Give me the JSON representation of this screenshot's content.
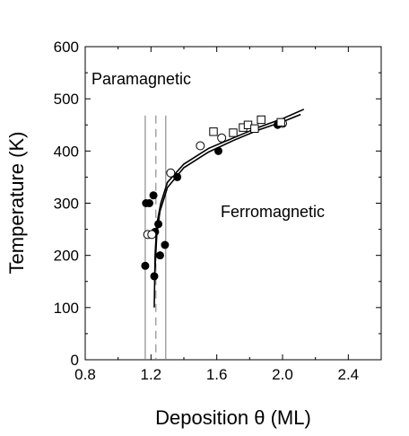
{
  "chart_data": {
    "type": "scatter",
    "xlabel": "Deposition θ (ML)",
    "ylabel": "Temperature (K)",
    "xlim": [
      0.8,
      2.6
    ],
    "ylim": [
      0,
      600
    ],
    "x_ticks": [
      0.8,
      1.2,
      1.6,
      2.0,
      2.4
    ],
    "x_tick_labels": [
      "0.8",
      "1.2",
      "1.6",
      "2.0",
      "2.4"
    ],
    "y_ticks": [
      0,
      100,
      200,
      300,
      400,
      500,
      600
    ],
    "y_tick_labels": [
      "0",
      "100",
      "200",
      "300",
      "400",
      "500",
      "600"
    ],
    "grid": false,
    "annotations": [
      {
        "text": "Paramagnetic",
        "x": 0.86,
        "y": 520
      },
      {
        "text": "Ferromagnetic",
        "x": 1.96,
        "y": 280
      }
    ],
    "vertical_lines": [
      {
        "x": 1.165,
        "style": "solid"
      },
      {
        "x": 1.23,
        "style": "dashed"
      },
      {
        "x": 1.29,
        "style": "solid"
      }
    ],
    "series": [
      {
        "marker": "filled-circle",
        "color": "#000000",
        "points": [
          [
            1.165,
            180
          ],
          [
            1.17,
            300
          ],
          [
            1.19,
            300
          ],
          [
            1.18,
            240
          ],
          [
            1.215,
            315
          ],
          [
            1.22,
            160
          ],
          [
            1.225,
            245
          ],
          [
            1.245,
            260
          ],
          [
            1.255,
            200
          ],
          [
            1.285,
            220
          ],
          [
            1.36,
            350
          ],
          [
            1.61,
            400
          ],
          [
            1.97,
            450
          ]
        ]
      },
      {
        "marker": "open-circle",
        "color": "#000000",
        "points": [
          [
            1.18,
            240
          ],
          [
            1.205,
            240
          ],
          [
            1.32,
            358
          ],
          [
            1.5,
            410
          ],
          [
            1.63,
            425
          ],
          [
            2.0,
            453
          ]
        ]
      },
      {
        "marker": "open-square",
        "color": "#000000",
        "points": [
          [
            1.58,
            437
          ],
          [
            1.7,
            435
          ],
          [
            1.76,
            445
          ],
          [
            1.79,
            450
          ],
          [
            1.83,
            443
          ],
          [
            1.87,
            460
          ],
          [
            1.99,
            455
          ]
        ]
      }
    ],
    "curves": [
      {
        "style": "solid",
        "color": "#000000",
        "points": [
          [
            1.22,
            100
          ],
          [
            1.225,
            200
          ],
          [
            1.235,
            260
          ],
          [
            1.26,
            300
          ],
          [
            1.3,
            340
          ],
          [
            1.4,
            375
          ],
          [
            1.55,
            405
          ],
          [
            1.7,
            425
          ],
          [
            1.85,
            445
          ],
          [
            2.0,
            462
          ],
          [
            2.13,
            480
          ]
        ]
      },
      {
        "style": "solid",
        "color": "#000000",
        "points": [
          [
            1.225,
            175
          ],
          [
            1.235,
            240
          ],
          [
            1.255,
            285
          ],
          [
            1.3,
            330
          ],
          [
            1.4,
            368
          ],
          [
            1.55,
            398
          ],
          [
            1.7,
            420
          ],
          [
            1.85,
            440
          ],
          [
            2.0,
            456
          ],
          [
            2.11,
            470
          ]
        ]
      }
    ]
  }
}
